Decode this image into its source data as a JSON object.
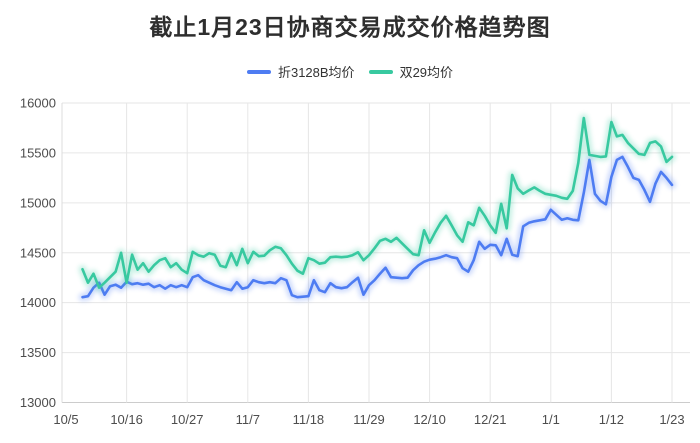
{
  "title": "截止1月23日协商交易成交价格趋势图",
  "colors": {
    "series_blue": "#4e7cf2",
    "series_green": "#38c9a0",
    "gridline": "#e6e6e6",
    "axis_line": "#cccccc",
    "plot_border": "#dcdcdc",
    "axis_label": "#4d4d4d",
    "title_text": "#2e2e2e",
    "background": "#ffffff"
  },
  "legend": [
    {
      "label": "折3128B均价",
      "color": "#4e7cf2"
    },
    {
      "label": "双29均价",
      "color": "#38c9a0"
    }
  ],
  "chart_data": {
    "type": "line",
    "title": "截止1月23日协商交易成交价格趋势图",
    "xlabel": "",
    "ylabel": "",
    "ylim": [
      13000,
      16000
    ],
    "y_ticks": [
      13000,
      13500,
      14000,
      14500,
      15000,
      15500,
      16000
    ],
    "x_ticks": [
      "10/5",
      "10/16",
      "10/27",
      "11/7",
      "11/18",
      "11/29",
      "12/10",
      "12/21",
      "1/1",
      "1/12",
      "1/23"
    ],
    "grid": true,
    "legend_position": "top",
    "series": [
      {
        "name": "折3128B均价",
        "color": "#4e7cf2",
        "points": [
          [
            "10/8",
            14055
          ],
          [
            "10/9",
            14065
          ],
          [
            "10/10",
            14150
          ],
          [
            "10/11",
            14200
          ],
          [
            "10/12",
            14080
          ],
          [
            "10/13",
            14165
          ],
          [
            "10/14",
            14180
          ],
          [
            "10/15",
            14150
          ],
          [
            "10/16",
            14210
          ],
          [
            "10/17",
            14185
          ],
          [
            "10/18",
            14195
          ],
          [
            "10/19",
            14180
          ],
          [
            "10/20",
            14190
          ],
          [
            "10/21",
            14155
          ],
          [
            "10/22",
            14175
          ],
          [
            "10/23",
            14140
          ],
          [
            "10/24",
            14175
          ],
          [
            "10/25",
            14155
          ],
          [
            "10/26",
            14175
          ],
          [
            "10/27",
            14155
          ],
          [
            "10/28",
            14255
          ],
          [
            "10/29",
            14275
          ],
          [
            "10/30",
            14225
          ],
          [
            "10/31",
            14200
          ],
          [
            "11/1",
            14175
          ],
          [
            "11/2",
            14155
          ],
          [
            "11/3",
            14140
          ],
          [
            "11/4",
            14125
          ],
          [
            "11/5",
            14205
          ],
          [
            "11/6",
            14140
          ],
          [
            "11/7",
            14155
          ],
          [
            "11/8",
            14225
          ],
          [
            "11/9",
            14205
          ],
          [
            "11/10",
            14195
          ],
          [
            "11/11",
            14205
          ],
          [
            "11/12",
            14195
          ],
          [
            "11/13",
            14245
          ],
          [
            "11/14",
            14225
          ],
          [
            "11/15",
            14075
          ],
          [
            "11/16",
            14055
          ],
          [
            "11/17",
            14060
          ],
          [
            "11/18",
            14065
          ],
          [
            "11/19",
            14225
          ],
          [
            "11/20",
            14125
          ],
          [
            "11/21",
            14105
          ],
          [
            "11/22",
            14195
          ],
          [
            "11/23",
            14155
          ],
          [
            "11/24",
            14145
          ],
          [
            "11/25",
            14155
          ],
          [
            "11/26",
            14205
          ],
          [
            "11/27",
            14250
          ],
          [
            "11/28",
            14080
          ],
          [
            "11/29",
            14175
          ],
          [
            "11/30",
            14225
          ],
          [
            "12/1",
            14290
          ],
          [
            "12/2",
            14350
          ],
          [
            "12/3",
            14255
          ],
          [
            "12/4",
            14250
          ],
          [
            "12/5",
            14245
          ],
          [
            "12/6",
            14250
          ],
          [
            "12/7",
            14325
          ],
          [
            "12/8",
            14375
          ],
          [
            "12/9",
            14410
          ],
          [
            "12/10",
            14430
          ],
          [
            "12/11",
            14440
          ],
          [
            "12/12",
            14455
          ],
          [
            "12/13",
            14475
          ],
          [
            "12/14",
            14455
          ],
          [
            "12/15",
            14445
          ],
          [
            "12/16",
            14345
          ],
          [
            "12/17",
            14310
          ],
          [
            "12/18",
            14425
          ],
          [
            "12/19",
            14610
          ],
          [
            "12/20",
            14540
          ],
          [
            "12/21",
            14580
          ],
          [
            "12/22",
            14575
          ],
          [
            "12/23",
            14475
          ],
          [
            "12/24",
            14640
          ],
          [
            "12/25",
            14480
          ],
          [
            "12/26",
            14465
          ],
          [
            "12/27",
            14765
          ],
          [
            "12/28",
            14800
          ],
          [
            "12/29",
            14815
          ],
          [
            "12/30",
            14825
          ],
          [
            "12/31",
            14835
          ],
          [
            "1/1",
            14930
          ],
          [
            "1/2",
            14880
          ],
          [
            "1/3",
            14830
          ],
          [
            "1/4",
            14845
          ],
          [
            "1/5",
            14830
          ],
          [
            "1/6",
            14825
          ],
          [
            "1/7",
            15100
          ],
          [
            "1/8",
            15430
          ],
          [
            "1/9",
            15090
          ],
          [
            "1/10",
            15020
          ],
          [
            "1/11",
            14985
          ],
          [
            "1/12",
            15260
          ],
          [
            "1/13",
            15430
          ],
          [
            "1/14",
            15460
          ],
          [
            "1/15",
            15360
          ],
          [
            "1/16",
            15250
          ],
          [
            "1/17",
            15230
          ],
          [
            "1/18",
            15130
          ],
          [
            "1/19",
            15010
          ],
          [
            "1/20",
            15195
          ],
          [
            "1/21",
            15310
          ],
          [
            "1/22",
            15250
          ],
          [
            "1/23",
            15180
          ]
        ]
      },
      {
        "name": "双29均价",
        "color": "#38c9a0",
        "points": [
          [
            "10/8",
            14335
          ],
          [
            "10/9",
            14200
          ],
          [
            "10/10",
            14290
          ],
          [
            "10/11",
            14150
          ],
          [
            "10/12",
            14200
          ],
          [
            "10/13",
            14255
          ],
          [
            "10/14",
            14310
          ],
          [
            "10/15",
            14500
          ],
          [
            "10/16",
            14200
          ],
          [
            "10/17",
            14480
          ],
          [
            "10/18",
            14330
          ],
          [
            "10/19",
            14395
          ],
          [
            "10/20",
            14310
          ],
          [
            "10/21",
            14375
          ],
          [
            "10/22",
            14425
          ],
          [
            "10/23",
            14445
          ],
          [
            "10/24",
            14355
          ],
          [
            "10/25",
            14395
          ],
          [
            "10/26",
            14330
          ],
          [
            "10/27",
            14295
          ],
          [
            "10/28",
            14510
          ],
          [
            "10/29",
            14475
          ],
          [
            "10/30",
            14460
          ],
          [
            "10/31",
            14495
          ],
          [
            "11/1",
            14480
          ],
          [
            "11/2",
            14370
          ],
          [
            "11/3",
            14355
          ],
          [
            "11/4",
            14495
          ],
          [
            "11/5",
            14375
          ],
          [
            "11/6",
            14540
          ],
          [
            "11/7",
            14395
          ],
          [
            "11/8",
            14510
          ],
          [
            "11/9",
            14465
          ],
          [
            "11/10",
            14470
          ],
          [
            "11/11",
            14525
          ],
          [
            "11/12",
            14560
          ],
          [
            "11/13",
            14545
          ],
          [
            "11/14",
            14475
          ],
          [
            "11/15",
            14390
          ],
          [
            "11/16",
            14320
          ],
          [
            "11/17",
            14290
          ],
          [
            "11/18",
            14445
          ],
          [
            "11/19",
            14425
          ],
          [
            "11/20",
            14390
          ],
          [
            "11/21",
            14400
          ],
          [
            "11/22",
            14455
          ],
          [
            "11/23",
            14460
          ],
          [
            "11/24",
            14455
          ],
          [
            "11/25",
            14460
          ],
          [
            "11/26",
            14475
          ],
          [
            "11/27",
            14505
          ],
          [
            "11/28",
            14425
          ],
          [
            "11/29",
            14475
          ],
          [
            "11/30",
            14545
          ],
          [
            "12/1",
            14620
          ],
          [
            "12/2",
            14640
          ],
          [
            "12/3",
            14610
          ],
          [
            "12/4",
            14650
          ],
          [
            "12/5",
            14595
          ],
          [
            "12/6",
            14540
          ],
          [
            "12/7",
            14485
          ],
          [
            "12/8",
            14475
          ],
          [
            "12/9",
            14725
          ],
          [
            "12/10",
            14600
          ],
          [
            "12/11",
            14705
          ],
          [
            "12/12",
            14800
          ],
          [
            "12/13",
            14870
          ],
          [
            "12/14",
            14775
          ],
          [
            "12/15",
            14675
          ],
          [
            "12/16",
            14610
          ],
          [
            "12/17",
            14805
          ],
          [
            "12/18",
            14775
          ],
          [
            "12/19",
            14950
          ],
          [
            "12/20",
            14870
          ],
          [
            "12/21",
            14775
          ],
          [
            "12/22",
            14700
          ],
          [
            "12/23",
            14990
          ],
          [
            "12/24",
            14745
          ],
          [
            "12/25",
            15280
          ],
          [
            "12/26",
            15145
          ],
          [
            "12/27",
            15090
          ],
          [
            "12/28",
            15125
          ],
          [
            "12/29",
            15155
          ],
          [
            "12/30",
            15120
          ],
          [
            "12/31",
            15090
          ],
          [
            "1/1",
            15080
          ],
          [
            "1/2",
            15070
          ],
          [
            "1/3",
            15050
          ],
          [
            "1/4",
            15040
          ],
          [
            "1/5",
            15120
          ],
          [
            "1/6",
            15400
          ],
          [
            "1/7",
            15850
          ],
          [
            "1/8",
            15480
          ],
          [
            "1/9",
            15470
          ],
          [
            "1/10",
            15460
          ],
          [
            "1/11",
            15465
          ],
          [
            "1/12",
            15810
          ],
          [
            "1/13",
            15665
          ],
          [
            "1/14",
            15680
          ],
          [
            "1/15",
            15600
          ],
          [
            "1/16",
            15545
          ],
          [
            "1/17",
            15490
          ],
          [
            "1/18",
            15480
          ],
          [
            "1/19",
            15600
          ],
          [
            "1/20",
            15615
          ],
          [
            "1/21",
            15565
          ],
          [
            "1/22",
            15410
          ],
          [
            "1/23",
            15460
          ]
        ]
      }
    ]
  }
}
